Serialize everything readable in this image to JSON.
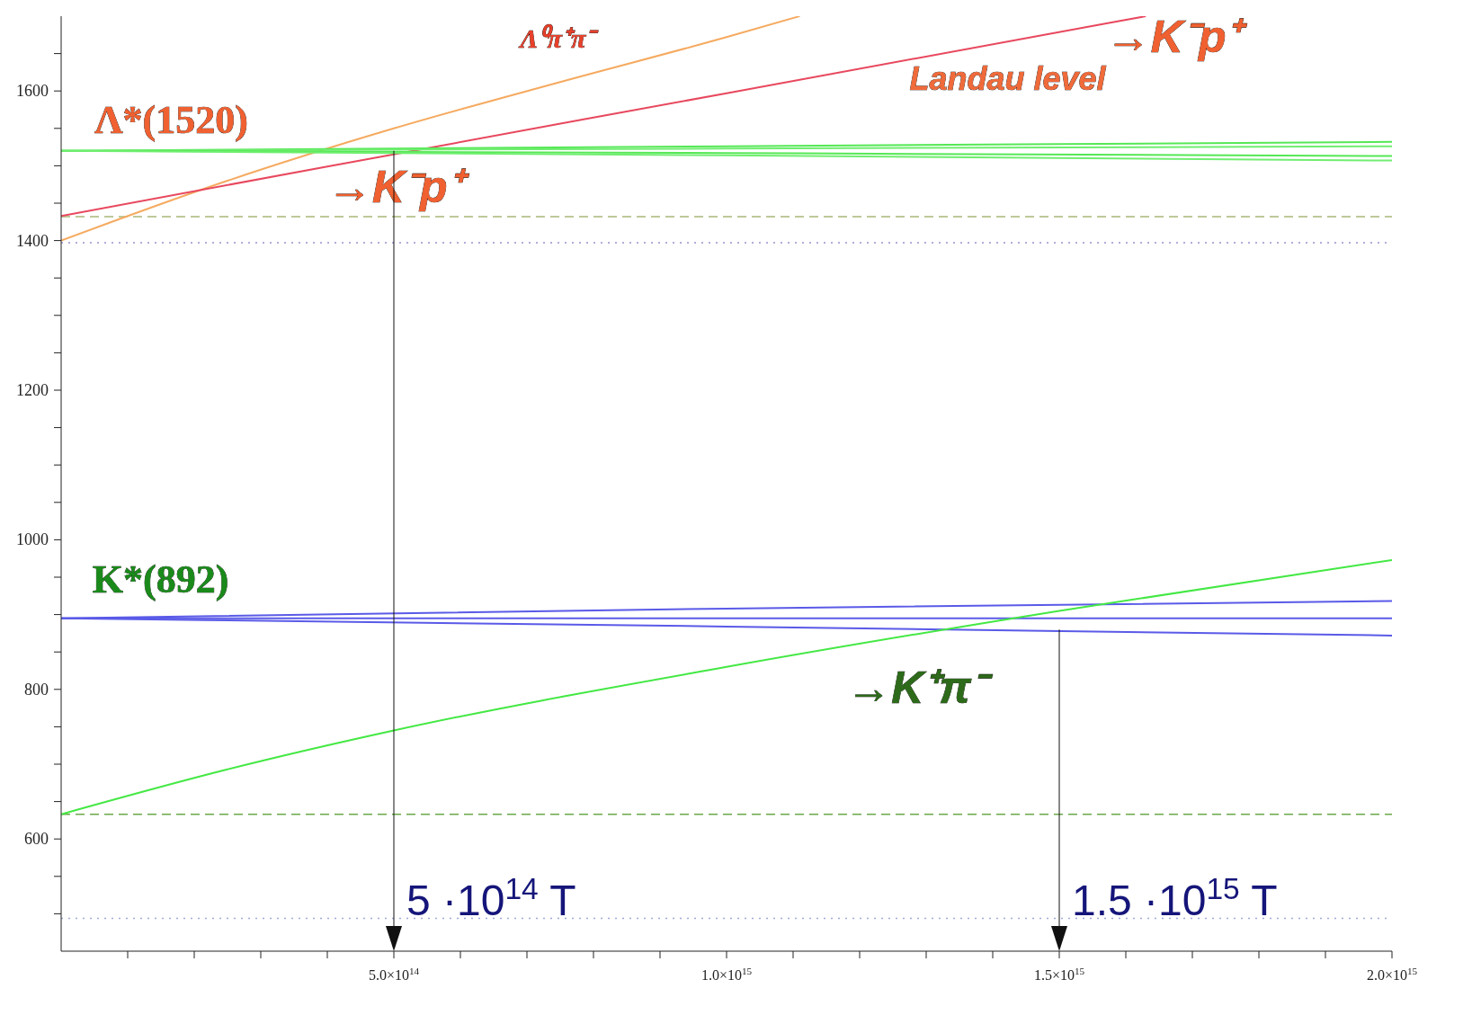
{
  "chart_data": {
    "type": "line",
    "xlim": [
      0,
      2000000000000000.0
    ],
    "ylim": [
      450,
      1700
    ],
    "xticks": [
      {
        "value": 100000000000000.0,
        "label": null
      },
      {
        "value": 200000000000000.0,
        "label": null
      },
      {
        "value": 300000000000000.0,
        "label": null
      },
      {
        "value": 400000000000000.0,
        "label": null
      },
      {
        "value": 500000000000000.0,
        "label": "5.0×10$^{14}$"
      },
      {
        "value": 600000000000000.0,
        "label": null
      },
      {
        "value": 700000000000000.0,
        "label": null
      },
      {
        "value": 800000000000000.0,
        "label": null
      },
      {
        "value": 900000000000000.0,
        "label": null
      },
      {
        "value": 1000000000000000.0,
        "label": "1.0×10$^{15}$"
      },
      {
        "value": 1100000000000000.0,
        "label": null
      },
      {
        "value": 1200000000000000.0,
        "label": null
      },
      {
        "value": 1300000000000000.0,
        "label": null
      },
      {
        "value": 1400000000000000.0,
        "label": null
      },
      {
        "value": 1500000000000000.0,
        "label": "1.5×10$^{15}$"
      },
      {
        "value": 1600000000000000.0,
        "label": null
      },
      {
        "value": 1700000000000000.0,
        "label": null
      },
      {
        "value": 1800000000000000.0,
        "label": null
      },
      {
        "value": 1900000000000000.0,
        "label": null
      },
      {
        "value": 2000000000000000.0,
        "label": "2.0×10$^{15}$"
      }
    ],
    "yticks": [
      {
        "value": 500,
        "label": null
      },
      {
        "value": 550,
        "label": null
      },
      600,
      {
        "value": 650,
        "label": null
      },
      {
        "value": 700,
        "label": null
      },
      {
        "value": 750,
        "label": null
      },
      800,
      {
        "value": 850,
        "label": null
      },
      {
        "value": 900,
        "label": null
      },
      {
        "value": 950,
        "label": null
      },
      1000,
      {
        "value": 1050,
        "label": null
      },
      {
        "value": 1100,
        "label": null
      },
      {
        "value": 1150,
        "label": null
      },
      1200,
      {
        "value": 1250,
        "label": null
      },
      {
        "value": 1300,
        "label": null
      },
      {
        "value": 1350,
        "label": null
      },
      1400,
      {
        "value": 1450,
        "label": null
      },
      {
        "value": 1500,
        "label": null
      },
      {
        "value": 1550,
        "label": null
      },
      1600,
      {
        "value": 1650,
        "label": null
      }
    ],
    "marker": "none",
    "line_style": "solid",
    "series": [
      {
        "color": "#f5aa60",
        "x": [
          0,
          250000000000000.0,
          500000000000000.0,
          750000000000000.0,
          1000000000000000.0,
          1110000000000000.0
        ],
        "values": [
          1400,
          1480,
          1550,
          1612,
          1672,
          1700
        ]
      },
      {
        "color": "#e8485e",
        "x": [
          0,
          400000000000000.0,
          1000000000000000.0,
          1630000000000000.0
        ],
        "values": [
          1433,
          1499,
          1597,
          1700
        ]
      },
      {
        "color": "#55e855",
        "x": [
          0,
          1000000000000000.0,
          2000000000000000.0
        ],
        "values": [
          1520,
          1526,
          1532
        ]
      },
      {
        "color": "#70ee70",
        "x": [
          0,
          1000000000000000.0,
          2000000000000000.0
        ],
        "values": [
          1520,
          1523,
          1526
        ]
      },
      {
        "color": "#55e855",
        "x": [
          0,
          1000000000000000.0,
          2000000000000000.0
        ],
        "values": [
          1520,
          1517,
          1513
        ]
      },
      {
        "color": "#70ee70",
        "x": [
          0,
          1000000000000000.0,
          2000000000000000.0
        ],
        "values": [
          1520,
          1514,
          1507
        ]
      },
      {
        "color": "#5a5ae8",
        "x": [
          0,
          1000000000000000.0,
          2000000000000000.0
        ],
        "values": [
          895,
          908,
          918
        ]
      },
      {
        "color": "#5a5ae8",
        "x": [
          0,
          1000000000000000.0,
          2000000000000000.0
        ],
        "values": [
          895,
          895,
          895
        ]
      },
      {
        "color": "#5a5ae8",
        "x": [
          0,
          1000000000000000.0,
          2000000000000000.0
        ],
        "values": [
          895,
          884,
          872
        ]
      },
      {
        "color": "#44e844",
        "x": [
          0,
          250000000000000.0,
          500000000000000.0,
          1000000000000000.0,
          1500000000000000.0,
          2000000000000000.0
        ],
        "values": [
          633,
          693,
          745,
          830,
          905,
          973
        ]
      }
    ],
    "ref_lines": [
      {
        "axis": "y",
        "value": 1432,
        "color": "#a8b878",
        "line_style": "dashed"
      },
      {
        "axis": "y",
        "value": 1397,
        "color": "#9a90d0",
        "line_style": "dotted"
      },
      {
        "axis": "y",
        "value": 633,
        "color": "#6aa84a",
        "line_style": "dashed"
      },
      {
        "axis": "y",
        "value": 494,
        "color": "#a0a8d8",
        "line_style": "dotted"
      }
    ],
    "annotations": [
      "Λ⁰π⁺π⁻",
      "→K⁻p⁺",
      "Landau level",
      "Λ*(1520)",
      "→K⁻p⁺",
      "K*(892)",
      "→K⁺π⁻",
      {
        "text": "5 ·10$^{14}$ T",
        "x": 500000000000000.0,
        "y": 1520
      },
      {
        "text": "1.5 ·10$^{15}$ T",
        "x": 1500000000000000.0,
        "y": 880
      }
    ]
  }
}
